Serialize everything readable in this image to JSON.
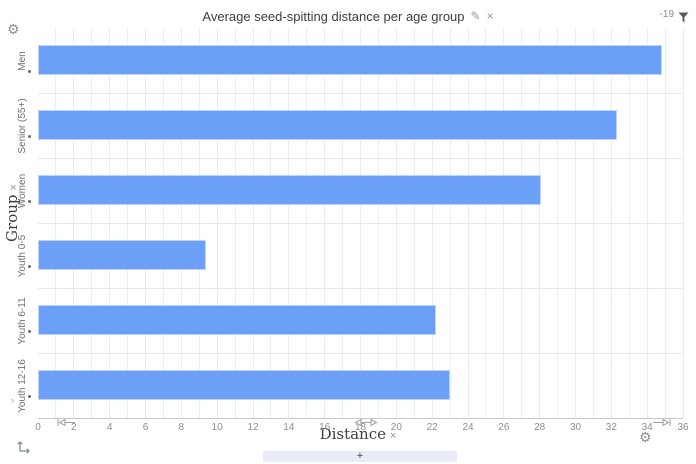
{
  "titlebar": {
    "title": "Average seed-spitting distance per age group",
    "edit_icon": "✎",
    "close_icon": "×",
    "filter_value": "-19"
  },
  "controls": {
    "gear_icon": "⚙",
    "add_label": "+",
    "y_axis_end_handle": "›"
  },
  "y_axis": {
    "label": "Group",
    "remove_icon": "×"
  },
  "x_axis": {
    "label": "Distance",
    "remove_icon": "×"
  },
  "chart_data": {
    "type": "bar",
    "orientation": "horizontal",
    "title": "Average seed-spitting distance per age group",
    "categories": [
      "Men",
      "Senior (55+)",
      "Women",
      "Youth 0-5",
      "Youth 6-11",
      "Youth 12-16"
    ],
    "values": [
      34.8,
      32.3,
      28.1,
      9.4,
      22.2,
      23.0
    ],
    "xlabel": "Distance",
    "ylabel": "Group",
    "xlim": [
      0,
      36
    ],
    "xticks": [
      0,
      2,
      4,
      6,
      8,
      10,
      12,
      14,
      16,
      18,
      20,
      22,
      24,
      26,
      28,
      30,
      32,
      34,
      36
    ],
    "grid": true,
    "legend": false,
    "bar_color": "#6c9ff6",
    "minor_grid_color": "#dff4f0",
    "major_grid_color": "#ede9f6",
    "axis_sliders": {
      "lower": 1.4,
      "pan": 18.3,
      "upper": 34.8
    }
  }
}
